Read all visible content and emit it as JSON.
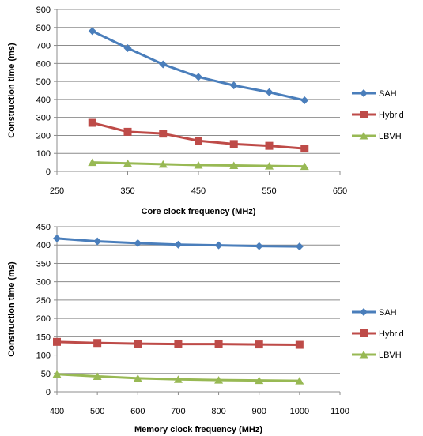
{
  "chart_data": [
    {
      "type": "line",
      "title": "",
      "xlabel": "Core clock frequency (MHz)",
      "ylabel": "Construction time (ms)",
      "xlim": [
        250,
        650
      ],
      "ylim": [
        0,
        900
      ],
      "xticks": [
        250,
        350,
        450,
        550,
        650
      ],
      "yticks": [
        0,
        100,
        200,
        300,
        400,
        500,
        600,
        700,
        800,
        900
      ],
      "grid": true,
      "legend": "right",
      "x": [
        300,
        350,
        400,
        450,
        500,
        550,
        600
      ],
      "series": [
        {
          "name": "SAH",
          "color": "#4a7ebb",
          "marker": "diamond",
          "values": [
            780,
            685,
            595,
            525,
            478,
            440,
            395
          ]
        },
        {
          "name": "Hybrid",
          "color": "#be4b48",
          "marker": "square",
          "values": [
            270,
            220,
            210,
            170,
            152,
            142,
            127
          ]
        },
        {
          "name": "LBVH",
          "color": "#98b954",
          "marker": "triangle",
          "values": [
            50,
            45,
            40,
            35,
            33,
            30,
            28
          ]
        }
      ]
    },
    {
      "type": "line",
      "title": "",
      "xlabel": "Memory clock frequency (MHz)",
      "ylabel": "Construction time  (ms)",
      "xlim": [
        400,
        1100
      ],
      "ylim": [
        0,
        450
      ],
      "xticks": [
        400,
        500,
        600,
        700,
        800,
        900,
        1000,
        1100
      ],
      "yticks": [
        0,
        50,
        100,
        150,
        200,
        250,
        300,
        350,
        400,
        450
      ],
      "grid": true,
      "legend": "right",
      "x": [
        400,
        500,
        600,
        700,
        800,
        900,
        1000
      ],
      "series": [
        {
          "name": "SAH",
          "color": "#4a7ebb",
          "marker": "diamond",
          "values": [
            418,
            410,
            405,
            401,
            399,
            397,
            396
          ]
        },
        {
          "name": "Hybrid",
          "color": "#be4b48",
          "marker": "square",
          "values": [
            136,
            133,
            131,
            130,
            130,
            129,
            128
          ]
        },
        {
          "name": "LBVH",
          "color": "#98b954",
          "marker": "triangle",
          "values": [
            48,
            42,
            37,
            34,
            32,
            31,
            30
          ]
        }
      ]
    }
  ]
}
